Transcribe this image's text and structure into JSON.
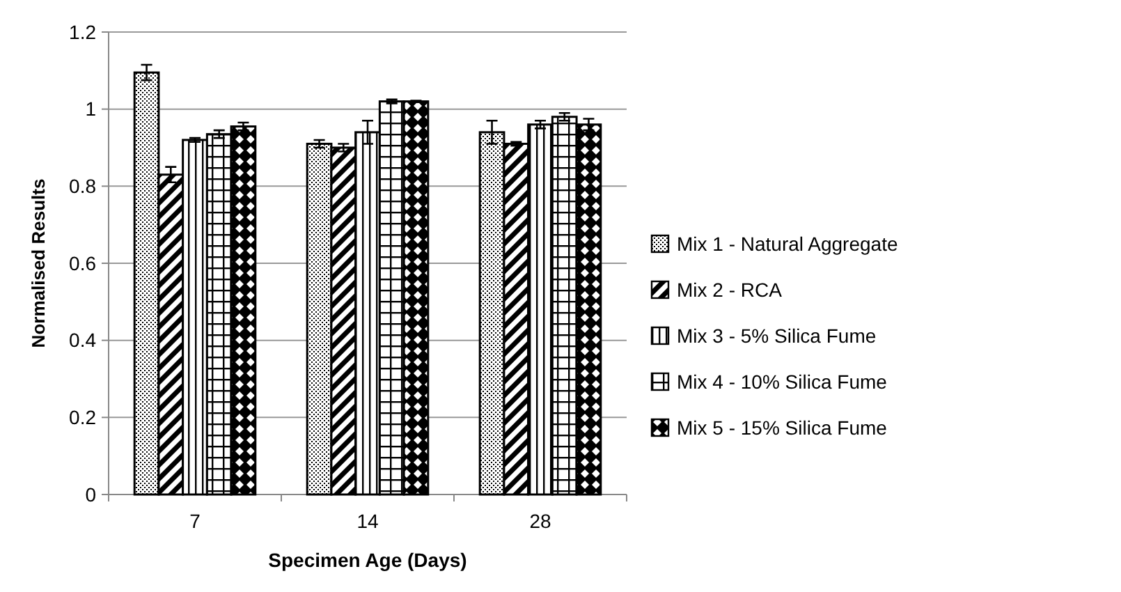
{
  "chart_data": {
    "type": "bar",
    "xlabel": "Specimen Age (Days)",
    "ylabel": "Normalised Results",
    "categories": [
      "7",
      "14",
      "28"
    ],
    "series": [
      {
        "name": "Mix 1 - Natural Aggregate",
        "color": "#000000",
        "values": [
          1.095,
          0.91,
          0.94
        ],
        "errors": [
          0.02,
          0.01,
          0.03
        ]
      },
      {
        "name": "Mix 2 - RCA",
        "color": "#000000",
        "values": [
          0.83,
          0.9,
          0.91
        ],
        "errors": [
          0.02,
          0.01,
          0.005
        ]
      },
      {
        "name": "Mix 3 - 5% Silica Fume",
        "color": "#000000",
        "values": [
          0.92,
          0.94,
          0.96
        ],
        "errors": [
          0.005,
          0.03,
          0.01
        ]
      },
      {
        "name": "Mix 4 - 10% Silica Fume",
        "color": "#000000",
        "values": [
          0.935,
          1.02,
          0.98
        ],
        "errors": [
          0.01,
          0.005,
          0.01
        ]
      },
      {
        "name": "Mix 5 - 15% Silica Fume",
        "color": "#000000",
        "values": [
          0.955,
          1.02,
          0.96
        ],
        "errors": [
          0.01,
          0.002,
          0.015
        ]
      }
    ],
    "ylim": [
      0,
      1.2
    ],
    "yticks": [
      {
        "value": 0,
        "label": "0"
      },
      {
        "value": 0.2,
        "label": "0.2"
      },
      {
        "value": 0.4,
        "label": "0.4"
      },
      {
        "value": 0.6,
        "label": "0.6"
      },
      {
        "value": 0.8,
        "label": "0.8"
      },
      {
        "value": 1,
        "label": "1"
      },
      {
        "value": 1.2,
        "label": "1.2"
      }
    ],
    "grid": "y",
    "legend": "right"
  }
}
